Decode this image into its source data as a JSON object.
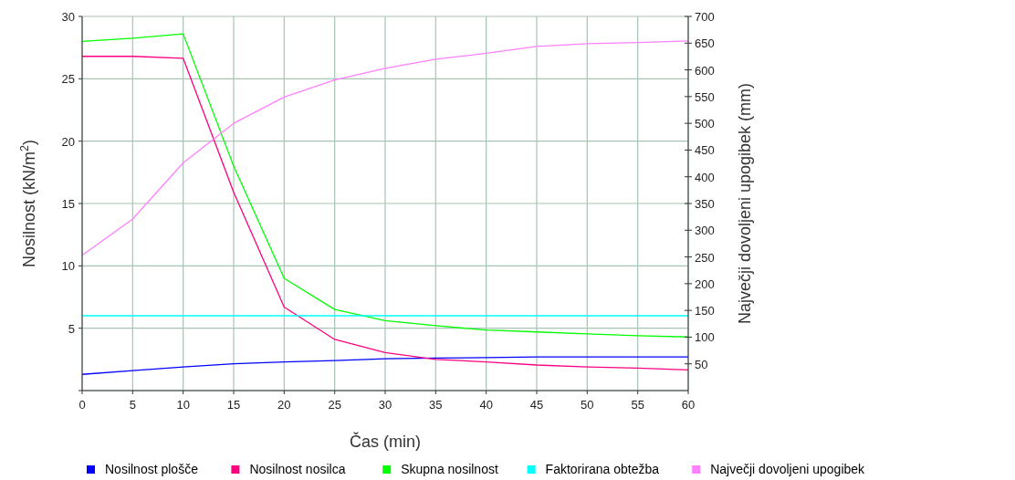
{
  "chart_data": {
    "type": "line",
    "xlabel": "Čas (min)",
    "ylabel": "Nosilnost (kN/m$^{2}$)",
    "y2label": "Največji dovoljeni upogibek (mm)",
    "x": [
      0,
      5,
      10,
      15,
      20,
      25,
      30,
      35,
      40,
      45,
      50,
      55,
      60
    ],
    "xlim": [
      0,
      60
    ],
    "xticks": [
      0,
      5,
      10,
      15,
      20,
      25,
      30,
      35,
      40,
      45,
      50,
      55,
      60
    ],
    "ylim": [
      0,
      30
    ],
    "yticks": [
      {
        "value": 0,
        "label": null
      },
      5,
      10,
      15,
      20,
      25,
      30
    ],
    "y2lim": [
      0,
      700
    ],
    "y2ticks": [
      50,
      100,
      150,
      200,
      250,
      300,
      350,
      400,
      450,
      500,
      550,
      600,
      650,
      700
    ],
    "grid": true,
    "legend": "bottom",
    "marker": "none",
    "line_style": "solid",
    "series": [
      {
        "name": "Nosilnost plošče",
        "color": "#0000ff",
        "values": [
          1.3,
          1.6,
          1.9,
          2.15,
          2.3,
          2.4,
          2.55,
          2.6,
          2.65,
          2.7,
          2.7,
          2.7,
          2.7
        ]
      },
      {
        "name": "Nosilnost nosilca",
        "color": "#ff0080",
        "values": [
          26.8,
          26.8,
          26.65,
          15.9,
          6.7,
          4.1,
          3.05,
          2.5,
          2.3,
          2.05,
          1.9,
          1.8,
          1.65
        ]
      },
      {
        "name": "Skupna nosilnost",
        "color": "#00ff00",
        "values": [
          28.0,
          28.25,
          28.6,
          18.0,
          9.0,
          6.5,
          5.6,
          5.2,
          4.85,
          4.7,
          4.55,
          4.4,
          4.3
        ]
      },
      {
        "name": "Faktorirana obtežba",
        "color": "#00ffff",
        "values": [
          6,
          6,
          6,
          6,
          6,
          6,
          6,
          6,
          6,
          6,
          6,
          6,
          6
        ]
      },
      {
        "name": "Največji dovoljeni upogibek",
        "color": "#ff80ff",
        "axis": "y2",
        "values": [
          253,
          321,
          426,
          500,
          549,
          581,
          603,
          620,
          631,
          644,
          649,
          651,
          654
        ]
      }
    ]
  }
}
